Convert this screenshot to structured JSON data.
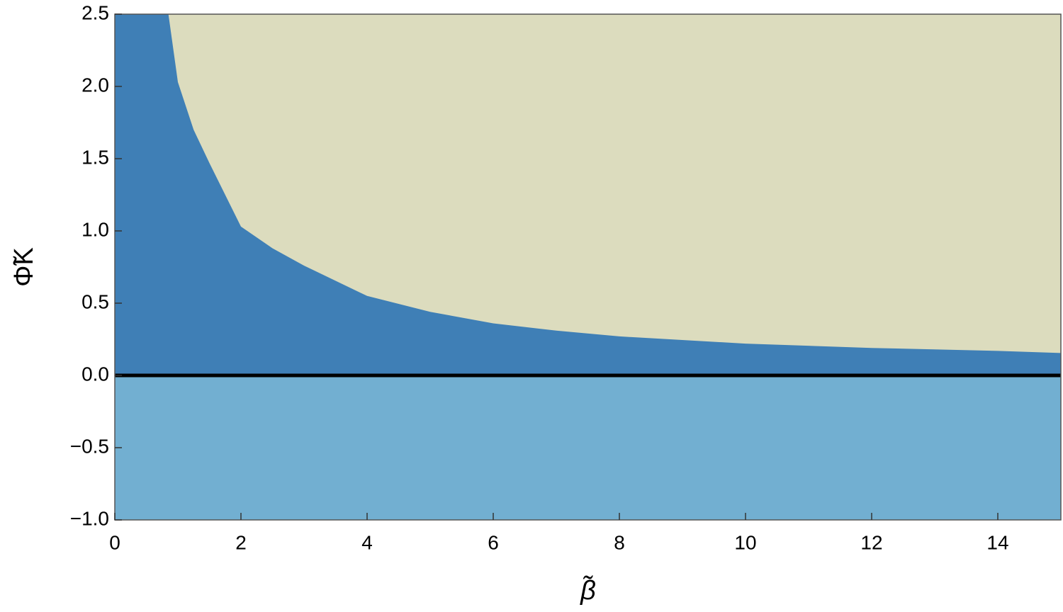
{
  "chart_data": {
    "type": "region",
    "xlabel": "β̃",
    "ylabel": "Φ̃K",
    "x": [
      0.85,
      1,
      1.25,
      1.5,
      2,
      2.5,
      3,
      4,
      5,
      6,
      7,
      8,
      10,
      12,
      14,
      15
    ],
    "values": [
      2.5,
      2.03,
      1.7,
      1.47,
      1.03,
      0.88,
      0.76,
      0.55,
      0.44,
      0.36,
      0.31,
      0.27,
      0.22,
      0.19,
      0.17,
      0.155
    ],
    "colors": {
      "above": "#dcdcbe",
      "between": "#3f7fb6",
      "below": "#72afd1"
    },
    "xlim": [
      0,
      15
    ],
    "ylim": [
      -1.0,
      2.5
    ],
    "xticks": [
      0,
      2,
      4,
      6,
      8,
      10,
      12,
      14
    ],
    "yticks": [
      {
        "value": -1.0,
        "label": "−1.0"
      },
      {
        "value": -0.5,
        "label": "−0.5"
      },
      {
        "value": 0,
        "label": "0.0"
      },
      {
        "value": 0.5,
        "label": "0.5"
      },
      {
        "value": 1.0,
        "label": "1.0"
      },
      {
        "value": 1.5,
        "label": "1.5"
      },
      {
        "value": 2.0,
        "label": "2.0"
      },
      {
        "value": 2.5,
        "label": "2.5"
      }
    ]
  }
}
